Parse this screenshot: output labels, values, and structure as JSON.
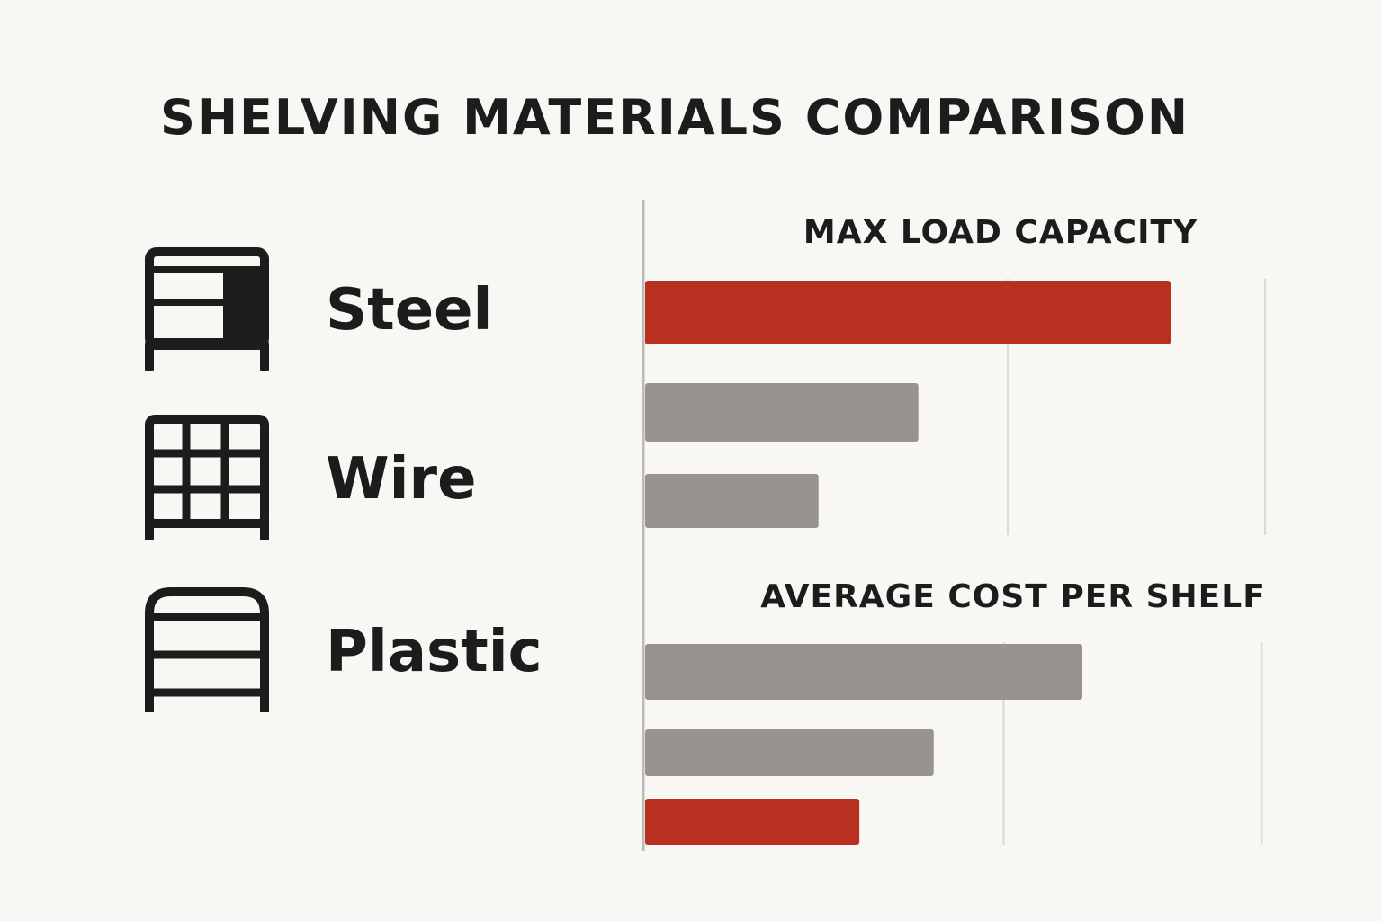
{
  "title": "SHELVING MATERIALS COMPARISON",
  "materials": [
    {
      "label": "Steel",
      "icon": "steel-shelf-icon"
    },
    {
      "label": "Wire",
      "icon": "wire-shelf-icon"
    },
    {
      "label": "Plastic",
      "icon": "plastic-shelf-icon"
    }
  ],
  "colors": {
    "highlight": "#b83020",
    "neutral": "#969390",
    "text": "#1c1c1c",
    "axis": "#bdbab6",
    "background": "#f9f7f3"
  },
  "chart_data": [
    {
      "type": "bar",
      "orientation": "horizontal",
      "title": "MAX LOAD CAPACITY",
      "categories": [
        "Steel",
        "Wire",
        "Plastic"
      ],
      "values": [
        1.0,
        0.52,
        0.33
      ],
      "highlight": [
        true,
        false,
        false
      ],
      "xlim": [
        0,
        1.18
      ],
      "gridlines": [
        0.69,
        1.18
      ],
      "grid": true
    },
    {
      "type": "bar",
      "orientation": "horizontal",
      "title": "AVERAGE COST PER SHELF",
      "categories": [
        "Steel",
        "Wire",
        "Plastic"
      ],
      "values": [
        1.0,
        0.66,
        0.49
      ],
      "highlight": [
        false,
        false,
        true
      ],
      "xlim": [
        0,
        1.41
      ],
      "gridlines": [
        0.82,
        1.41
      ],
      "grid": true
    }
  ]
}
